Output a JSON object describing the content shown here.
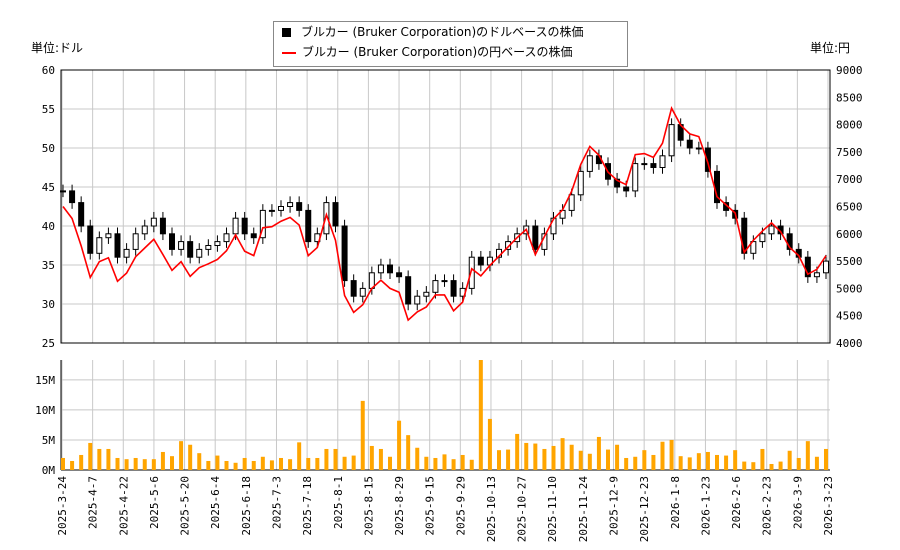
{
  "legend": {
    "usd": "ブルカー (Bruker Corporation)のドルベースの株価",
    "jpy": "ブルカー (Bruker Corporation)の円ベースの株価"
  },
  "units": {
    "left": "単位:ドル",
    "right": "単位:円"
  },
  "colors": {
    "usd": "#000000",
    "jpy": "#ff0000",
    "volume": "#ffa500",
    "grid": "#c8c8c8"
  },
  "chart_data": [
    {
      "type": "candlestick+line",
      "ylim_left": [
        25,
        60
      ],
      "ylim_right": [
        4000,
        9000
      ],
      "yticks_left": [
        "25",
        "30",
        "35",
        "40",
        "45",
        "50",
        "55",
        "60"
      ],
      "yticks_right": [
        "4000",
        "4500",
        "5000",
        "5500",
        "6000",
        "6500",
        "7000",
        "7500",
        "8000",
        "8500",
        "9000"
      ],
      "grid": true,
      "usd_close": [
        44.5,
        43,
        40,
        36.5,
        38.5,
        39,
        36,
        37,
        39,
        40,
        41,
        39,
        37,
        38,
        36,
        37,
        37.5,
        38,
        39,
        41,
        39,
        38.5,
        42,
        42,
        42.5,
        43,
        42,
        38,
        39,
        43,
        40,
        33,
        31,
        32,
        34,
        35,
        34,
        33.5,
        30,
        31,
        31.5,
        33,
        33,
        31,
        32,
        36,
        35,
        36,
        37,
        38,
        39,
        40,
        37,
        39,
        41,
        42,
        44,
        47,
        49,
        48,
        46,
        45,
        44.5,
        48,
        48,
        47.5,
        49,
        53,
        51,
        50,
        50,
        47,
        43,
        42,
        41,
        36.5,
        38,
        39,
        40,
        39,
        37,
        36,
        33.5,
        34,
        35.5
      ],
      "jpy_close": [
        6500,
        6280,
        5780,
        5200,
        5490,
        5560,
        5130,
        5280,
        5580,
        5740,
        5900,
        5620,
        5330,
        5490,
        5220,
        5380,
        5450,
        5530,
        5690,
        5980,
        5680,
        5600,
        6110,
        6130,
        6230,
        6300,
        6160,
        5600,
        5750,
        6350,
        5880,
        4870,
        4560,
        4700,
        5000,
        5150,
        5000,
        4930,
        4420,
        4570,
        4660,
        4880,
        4880,
        4590,
        4750,
        5360,
        5230,
        5420,
        5590,
        5760,
        5930,
        6080,
        5620,
        5950,
        6270,
        6440,
        6780,
        7270,
        7600,
        7440,
        7130,
        6980,
        6900,
        7450,
        7470,
        7400,
        7660,
        8300,
        7990,
        7830,
        7780,
        7300,
        6680,
        6530,
        6380,
        5660,
        5880,
        6050,
        6200,
        6040,
        5750,
        5600,
        5260,
        5350,
        5600
      ]
    },
    {
      "type": "bar",
      "ylim": [
        0,
        18.3
      ],
      "yticks": [
        "0M",
        "5M",
        "10M",
        "15M"
      ],
      "grid": true,
      "volume_millions": [
        2,
        1.5,
        2.5,
        4.5,
        3.5,
        3.5,
        2,
        1.8,
        2,
        1.8,
        1.8,
        3,
        2.3,
        4.8,
        4.2,
        2.8,
        1.5,
        2.4,
        1.5,
        1.2,
        2,
        1.5,
        2.2,
        1.6,
        2,
        1.8,
        4.6,
        2,
        2,
        3.5,
        3.5,
        2.2,
        2.4,
        11.5,
        4,
        3.5,
        2.2,
        8.2,
        5.8,
        3.7,
        2.2,
        2,
        2.6,
        1.8,
        2.5,
        1.7,
        18.3,
        8.5,
        3.3,
        3.4,
        6,
        4.5,
        4.4,
        3.5,
        4,
        5.3,
        4.2,
        3.2,
        2.7,
        5.5,
        3.4,
        4.2,
        2,
        2.2,
        3.3,
        2.5,
        4.7,
        5,
        2.3,
        2.1,
        2.8,
        3,
        2.5,
        2.4,
        3.3,
        1.4,
        1.3,
        3.5,
        1,
        1.4,
        3.2,
        2,
        4.8,
        2.2,
        3.5
      ],
      "xticks": [
        "2025-3-24",
        "2025-4-7",
        "2025-4-22",
        "2025-5-6",
        "2025-5-20",
        "2025-6-4",
        "2025-6-18",
        "2025-7-3",
        "2025-7-18",
        "2025-8-1",
        "2025-8-15",
        "2025-8-29",
        "2025-9-15",
        "2025-9-29",
        "2025-10-13",
        "2025-10-27",
        "2025-11-10",
        "2025-11-24",
        "2025-12-9",
        "2025-12-23",
        "2026-1-8",
        "2026-1-23",
        "2026-2-6",
        "2026-2-23",
        "2026-3-9",
        "2026-3-23"
      ]
    }
  ]
}
